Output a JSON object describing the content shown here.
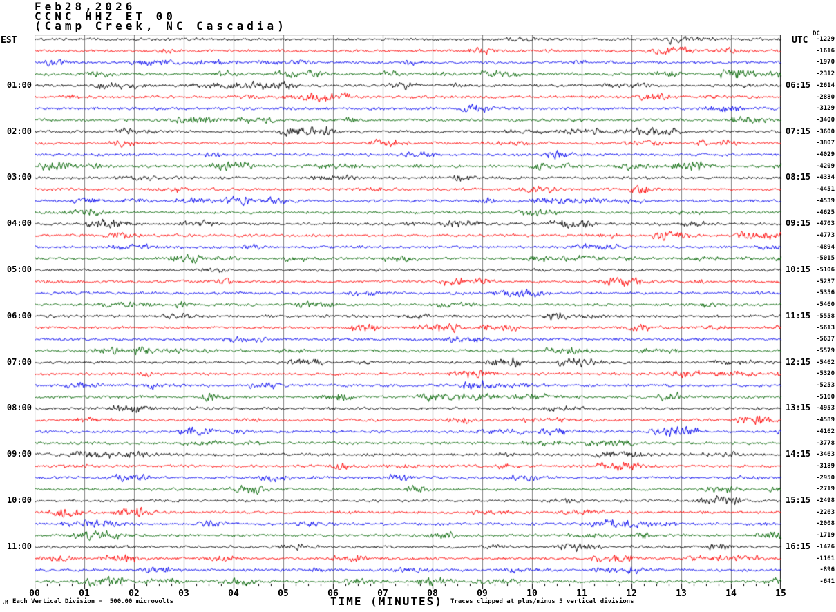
{
  "header": {
    "date": "Feb28,2026",
    "station_line": "CCNC HHZ ET 00",
    "location_line": "(Camp Creek, NC Cascadia)"
  },
  "left_axis": {
    "label": "EST"
  },
  "right_axis": {
    "label": "UTC",
    "dc_label": "DC"
  },
  "x_axis": {
    "label": "TIME (MINUTES)"
  },
  "footer": {
    "watermark": ".M",
    "scale_note": "Each Vertical Division =  500.00 microvolts",
    "clip_note": "Traces clipped at plus/minus 5 vertical divisions"
  },
  "chart_data": {
    "type": "line",
    "subtype": "helicorder-seismogram",
    "title": "Feb28,2026 CCNC HHZ ET 00 (Camp Creek, NC Cascadia)",
    "xlabel": "TIME (MINUTES)",
    "xlim": [
      0,
      15
    ],
    "x_tick_labels": [
      "00",
      "01",
      "02",
      "03",
      "04",
      "05",
      "06",
      "07",
      "08",
      "09",
      "10",
      "11",
      "12",
      "13",
      "14",
      "15"
    ],
    "rows": 48,
    "minutes_per_row": 15,
    "first_row_start_est": "00:00",
    "row_colors_cycle": [
      "#000000",
      "#ff0000",
      "#0000ee",
      "#006400"
    ],
    "grid_color": "#808080",
    "grid": true,
    "left_time_ticks": [
      {
        "row": 4,
        "label": "01:00"
      },
      {
        "row": 8,
        "label": "02:00"
      },
      {
        "row": 12,
        "label": "03:00"
      },
      {
        "row": 16,
        "label": "04:00"
      },
      {
        "row": 20,
        "label": "05:00"
      },
      {
        "row": 24,
        "label": "06:00"
      },
      {
        "row": 28,
        "label": "07:00"
      },
      {
        "row": 32,
        "label": "08:00"
      },
      {
        "row": 36,
        "label": "09:00"
      },
      {
        "row": 40,
        "label": "10:00"
      },
      {
        "row": 44,
        "label": "11:00"
      }
    ],
    "right_time_ticks": [
      {
        "row": 4,
        "label": "06:15"
      },
      {
        "row": 8,
        "label": "07:15"
      },
      {
        "row": 12,
        "label": "08:15"
      },
      {
        "row": 16,
        "label": "09:15"
      },
      {
        "row": 20,
        "label": "10:15"
      },
      {
        "row": 24,
        "label": "11:15"
      },
      {
        "row": 28,
        "label": "12:15"
      },
      {
        "row": 32,
        "label": "13:15"
      },
      {
        "row": 36,
        "label": "14:15"
      },
      {
        "row": 40,
        "label": "15:15"
      },
      {
        "row": 44,
        "label": "16:15"
      }
    ],
    "dc_offsets": [
      -1229,
      -1616,
      -1970,
      -2312,
      -2614,
      -2880,
      -3129,
      -3400,
      -3600,
      -3807,
      -4029,
      -4209,
      -4334,
      -4451,
      -4539,
      -4625,
      -4703,
      -4773,
      -4894,
      -5015,
      -5106,
      -5237,
      -5356,
      -5460,
      -5558,
      -5613,
      -5637,
      -5579,
      -5462,
      -5320,
      -5253,
      -5160,
      -4953,
      -4589,
      -4162,
      -3778,
      -3463,
      -3189,
      -2950,
      -2719,
      -2498,
      -2263,
      -2008,
      -1719,
      -1426,
      -1161,
      -896,
      -641
    ],
    "scale_note": "Each Vertical Division =  500.00 microvolts",
    "clip_note": "Traces clipped at plus/minus 5 vertical divisions",
    "clip_divisions": 5,
    "microvolts_per_division": 500.0
  }
}
